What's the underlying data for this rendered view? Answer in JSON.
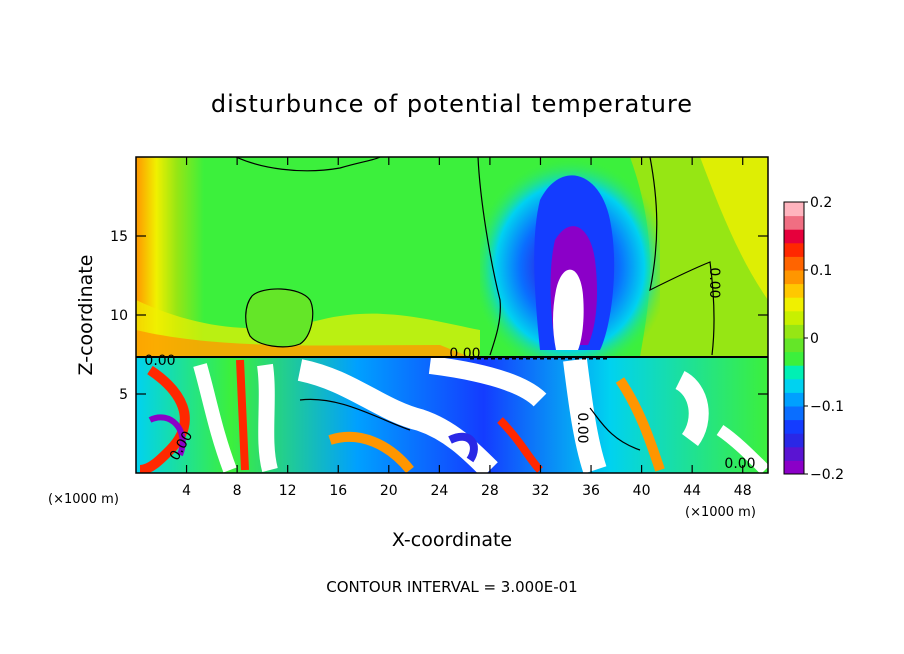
{
  "chart_data": {
    "type": "heatmap",
    "title": "disturbunce of potential temperature",
    "xlabel": "X-coordinate",
    "ylabel": "Z-coordinate",
    "x_unit": "(×1000 m)",
    "x_unit_right": "(×1000 m)",
    "xlim": [
      0,
      50
    ],
    "ylim": [
      0,
      20
    ],
    "x_ticks": [
      4,
      8,
      12,
      16,
      20,
      24,
      28,
      32,
      36,
      40,
      44,
      48
    ],
    "x_tick_labels": [
      "4",
      "8",
      "12",
      "16",
      "20",
      "24",
      "28",
      "32",
      "36",
      "40",
      "44",
      "48"
    ],
    "y_ticks": [
      5,
      10,
      15
    ],
    "y_tick_labels": [
      "5",
      "10",
      "15"
    ],
    "colorbar": {
      "min": -0.2,
      "max": 0.2,
      "ticks": [
        0.2,
        0.1,
        0,
        -0.1,
        -0.2
      ],
      "tick_labels": [
        "0.2",
        "0.1",
        "0",
        "−0.1",
        "−0.2"
      ],
      "colors": [
        "#8b00c8",
        "#5a14d2",
        "#2a28e6",
        "#143cff",
        "#0a6eff",
        "#00a0ff",
        "#00d2f0",
        "#00f0b4",
        "#3cf03c",
        "#64e628",
        "#96e614",
        "#c8f000",
        "#f0f000",
        "#ffc800",
        "#ff9600",
        "#ff6400",
        "#ff2800",
        "#e6003c",
        "#f06e82",
        "#ffb4be"
      ]
    },
    "contour_labels": [
      "0.00",
      "0.00",
      "0.00",
      "0.00",
      "0.00",
      "0.00"
    ],
    "contour_interval_text": "CONTOUR INTERVAL = 3.000E-01"
  }
}
